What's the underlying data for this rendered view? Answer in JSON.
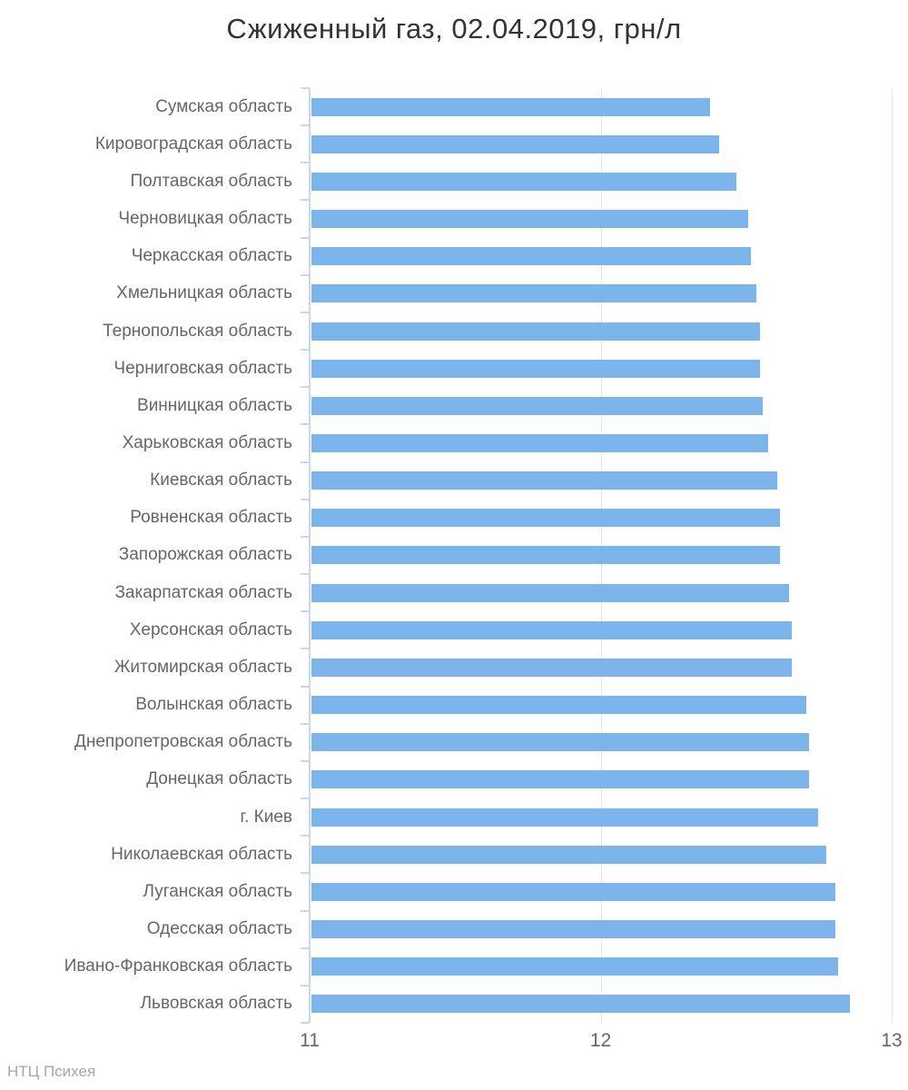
{
  "chart_data": {
    "type": "bar",
    "title": "Сжиженный газ, 02.04.2019, грн/л",
    "categories": [
      "Сумская область",
      "Кировоградская область",
      "Полтавская область",
      "Черновицкая область",
      "Черкасская область",
      "Хмельницкая область",
      "Тернопольская область",
      "Черниговская область",
      "Винницкая область",
      "Харьковская область",
      "Киевская область",
      "Ровненская область",
      "Запорожская область",
      "Закарпатская область",
      "Херсонская область",
      "Житомирская область",
      "Волынская область",
      "Днепропетровская область",
      "Донецкая область",
      "г. Киев",
      "Николаевская область",
      "Луганская область",
      "Одесская область",
      "Ивано-Франковская область",
      "Львовская область"
    ],
    "values": [
      12.37,
      12.4,
      12.46,
      12.5,
      12.51,
      12.53,
      12.54,
      12.54,
      12.55,
      12.57,
      12.6,
      12.61,
      12.61,
      12.64,
      12.65,
      12.65,
      12.7,
      12.71,
      12.71,
      12.74,
      12.77,
      12.8,
      12.8,
      12.81,
      12.85
    ],
    "xlabel": "",
    "ylabel": "",
    "xlim": [
      11,
      13
    ],
    "xticks": [
      "11",
      "12",
      "13"
    ],
    "grid": true,
    "legend": "none",
    "orientation": "horizontal",
    "colors": {
      "bar": "#7cb5ec",
      "axis": "#ccd6eb",
      "grid": "#e6e6e6",
      "label": "#666666",
      "title": "#333333",
      "credit": "#a6a6a6"
    }
  },
  "credits": {
    "text": "НТЦ Психея"
  }
}
